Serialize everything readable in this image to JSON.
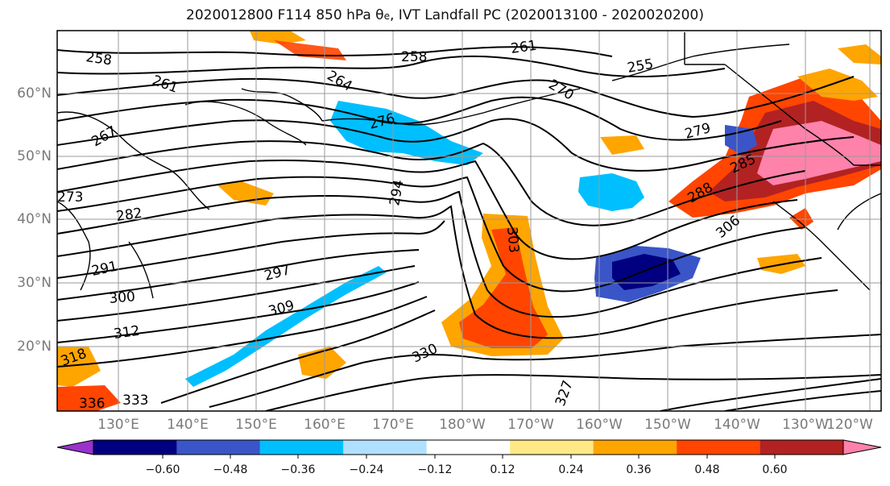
{
  "title": {
    "main": "2020012800 F114 850 hPa θ",
    "sub": "e",
    "rest": ", IVT Landfall PC (2020013100 - 2020020200)"
  },
  "lat_labels": [
    "60°N",
    "50°N",
    "40°N",
    "30°N",
    "20°N"
  ],
  "lon_labels": [
    "130°E",
    "140°E",
    "150°E",
    "160°E",
    "170°E",
    "180°W",
    "170°W",
    "160°W",
    "150°W",
    "140°W",
    "130°W",
    "120°W"
  ],
  "contour_labels": [
    "258",
    "261",
    "264",
    "267",
    "270",
    "273",
    "276",
    "279",
    "282",
    "285",
    "288",
    "291",
    "294",
    "297",
    "300",
    "303",
    "306",
    "309",
    "312",
    "318",
    "327",
    "330",
    "333",
    "336",
    "255",
    "258",
    "261"
  ],
  "colorbar": {
    "ticks": [
      "−0.60",
      "−0.48",
      "−0.36",
      "−0.24",
      "−0.12",
      "0.12",
      "0.24",
      "0.36",
      "0.48",
      "0.60"
    ],
    "colors": [
      "#9932cc",
      "#000080",
      "#3a55c8",
      "#00bfff",
      "#b0e0ff",
      "#ffffff",
      "#ffe985",
      "#ffa500",
      "#ff4500",
      "#b22222",
      "#ff82ab"
    ]
  }
}
